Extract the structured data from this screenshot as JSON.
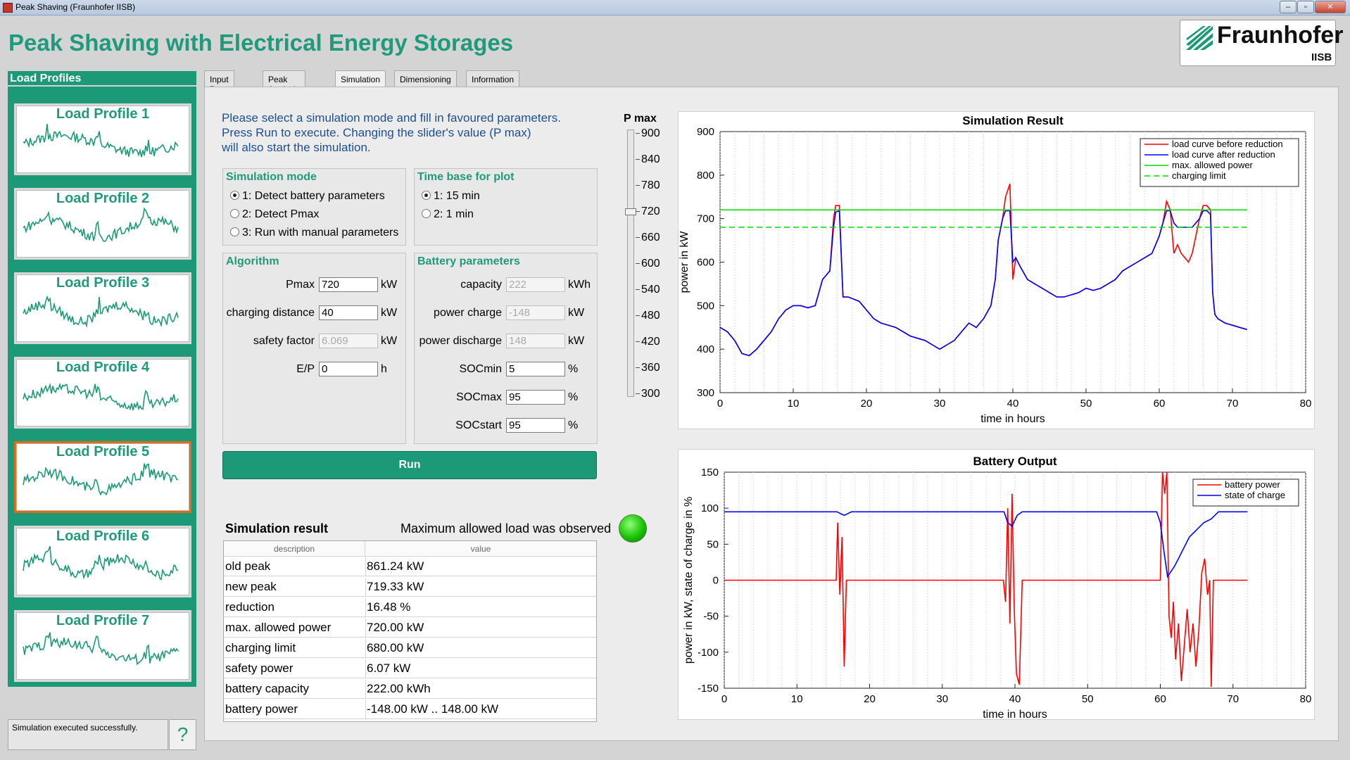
{
  "window": {
    "title": "Peak Shaving (Fraunhofer IISB)",
    "min": "–",
    "max": "▫",
    "close": "✕"
  },
  "app_title": "Peak Shaving with Electrical Energy Storages",
  "logo": {
    "word": "Fraunhofer",
    "sub": "IISB"
  },
  "load_profiles": {
    "header": "Load Profiles",
    "items": [
      {
        "label": "Load Profile 1"
      },
      {
        "label": "Load Profile 2"
      },
      {
        "label": "Load Profile 3"
      },
      {
        "label": "Load Profile 4"
      },
      {
        "label": "Load Profile 5"
      },
      {
        "label": "Load Profile 6"
      },
      {
        "label": "Load Profile 7"
      }
    ],
    "selected_index": 4
  },
  "status": {
    "message": "Simulation executed successfully.",
    "help": "?"
  },
  "tabs": [
    {
      "label": "Input Data"
    },
    {
      "label": "Peak Analysis"
    },
    {
      "label": "Simulation"
    },
    {
      "label": "Dimensioning"
    },
    {
      "label": "Information"
    }
  ],
  "active_tab": "Simulation",
  "instructions": [
    "Please select a simulation mode and fill in favoured parameters.",
    "Press Run to execute. Changing the slider's value (P max)",
    "will also start the simulation."
  ],
  "simulation_mode": {
    "title": "Simulation mode",
    "options": [
      "1: Detect battery parameters",
      "2: Detect Pmax",
      "3: Run with manual parameters"
    ],
    "selected": 0
  },
  "time_base": {
    "title": "Time base for plot",
    "options": [
      "1: 15 min",
      "2: 1 min"
    ],
    "selected": 0
  },
  "algorithm": {
    "title": "Algorithm",
    "fields": [
      {
        "label": "Pmax",
        "value": "720",
        "unit": "kW",
        "disabled": false
      },
      {
        "label": "charging distance",
        "value": "40",
        "unit": "kW",
        "disabled": false
      },
      {
        "label": "safety factor",
        "value": "6.069",
        "unit": "kW",
        "disabled": true
      },
      {
        "label": "E/P",
        "value": "0",
        "unit": "h",
        "disabled": false
      }
    ]
  },
  "battery": {
    "title": "Battery parameters",
    "fields": [
      {
        "label": "capacity",
        "value": "222",
        "unit": "kWh",
        "disabled": true
      },
      {
        "label": "power charge",
        "value": "-148",
        "unit": "kW",
        "disabled": true
      },
      {
        "label": "power discharge",
        "value": "148",
        "unit": "kW",
        "disabled": true
      },
      {
        "label": "SOCmin",
        "value": "5",
        "unit": "%",
        "disabled": false
      },
      {
        "label": "SOCmax",
        "value": "95",
        "unit": "%",
        "disabled": false
      },
      {
        "label": "SOCstart",
        "value": "95",
        "unit": "%",
        "disabled": false
      }
    ]
  },
  "run_label": "Run",
  "result": {
    "title": "Simulation result",
    "status_text": "Maximum allowed load was observed",
    "status_color": "#19c400",
    "columns": [
      "description",
      "value"
    ],
    "rows": [
      [
        "old peak",
        "861.24 kW"
      ],
      [
        "new peak",
        "719.33 kW"
      ],
      [
        "reduction",
        "16.48 %"
      ],
      [
        "max. allowed power",
        "720.00 kW"
      ],
      [
        "charging limit",
        "680.00 kW"
      ],
      [
        "safety power",
        "6.07 kW"
      ],
      [
        "battery capacity",
        "222.00 kWh"
      ],
      [
        "battery power",
        "-148.00 kW .. 148.00 kW"
      ]
    ]
  },
  "slider": {
    "label": "P max",
    "ticks": [
      "900",
      "840",
      "780",
      "720",
      "660",
      "600",
      "540",
      "480",
      "420",
      "360",
      "300"
    ],
    "min": 300,
    "max": 900,
    "value": 720
  },
  "chart_data": [
    {
      "type": "line",
      "title": "Simulation Result",
      "xlabel": "time in hours",
      "ylabel": "power in kW",
      "xlim": [
        0,
        80
      ],
      "ylim": [
        300,
        900
      ],
      "xticks": [
        "0",
        "10",
        "20",
        "30",
        "40",
        "50",
        "60",
        "70",
        "80"
      ],
      "yticks": [
        "900",
        "800",
        "700",
        "600",
        "500",
        "400",
        "300"
      ],
      "legend_position": "top-right",
      "grid": "vertical-dotted",
      "series": [
        {
          "name": "load curve before reduction",
          "color": "#ff0000",
          "style": "solid",
          "x": [
            0,
            1,
            2,
            3,
            4,
            5,
            6,
            7,
            8,
            9,
            10,
            11,
            12,
            13,
            14,
            15,
            15.5,
            15.8,
            16.3,
            16.8,
            17,
            17.5,
            19,
            20,
            21,
            22,
            24,
            26,
            28,
            29,
            30,
            31,
            32,
            33,
            34,
            35,
            36,
            37,
            37.6,
            38,
            38.6,
            39,
            39.6,
            40,
            40.4,
            41,
            42,
            43,
            44,
            45,
            46,
            47,
            48,
            49,
            50,
            51,
            52,
            53,
            54,
            55,
            56,
            57,
            58,
            59,
            59.5,
            60,
            60.5,
            61,
            61.5,
            62,
            62.5,
            63,
            63.5,
            64,
            64.5,
            65,
            65.5,
            66,
            66.5,
            67,
            67.3,
            67.6,
            68,
            69,
            70,
            71,
            72
          ],
          "y": [
            450,
            440,
            420,
            390,
            385,
            400,
            420,
            440,
            470,
            490,
            500,
            500,
            495,
            500,
            560,
            580,
            700,
            730,
            730,
            520,
            520,
            520,
            510,
            490,
            470,
            460,
            450,
            430,
            420,
            410,
            400,
            410,
            420,
            440,
            460,
            450,
            470,
            500,
            560,
            650,
            700,
            750,
            780,
            560,
            610,
            590,
            560,
            550,
            540,
            530,
            520,
            520,
            525,
            530,
            540,
            535,
            540,
            550,
            560,
            580,
            590,
            600,
            610,
            620,
            640,
            660,
            690,
            740,
            720,
            620,
            640,
            620,
            610,
            600,
            620,
            660,
            700,
            730,
            730,
            720,
            530,
            480,
            470,
            460,
            455,
            450,
            445
          ]
        },
        {
          "name": "load curve after reduction",
          "color": "#0000ff",
          "style": "solid",
          "x": [
            0,
            1,
            2,
            3,
            4,
            5,
            6,
            7,
            8,
            9,
            10,
            11,
            12,
            13,
            14,
            15,
            15.5,
            15.8,
            16.3,
            16.8,
            17,
            17.5,
            19,
            20,
            21,
            22,
            24,
            26,
            28,
            29,
            30,
            31,
            32,
            33,
            34,
            35,
            36,
            37,
            37.6,
            38,
            38.6,
            39,
            39.6,
            40,
            40.4,
            41,
            42,
            43,
            44,
            45,
            46,
            47,
            48,
            49,
            50,
            51,
            52,
            53,
            54,
            55,
            56,
            57,
            58,
            59,
            59.5,
            60,
            60.5,
            61,
            61.5,
            62,
            62.5,
            63,
            63.5,
            64,
            64.5,
            65,
            65.5,
            66,
            66.5,
            67,
            67.3,
            67.6,
            68,
            69,
            70,
            71,
            72
          ],
          "y": [
            450,
            440,
            420,
            390,
            385,
            400,
            420,
            440,
            470,
            490,
            500,
            500,
            495,
            500,
            560,
            580,
            680,
            715,
            718,
            520,
            520,
            520,
            510,
            490,
            470,
            460,
            450,
            430,
            420,
            410,
            400,
            410,
            420,
            440,
            460,
            450,
            470,
            500,
            560,
            650,
            700,
            718,
            718,
            600,
            610,
            590,
            560,
            550,
            540,
            530,
            520,
            520,
            525,
            530,
            540,
            535,
            540,
            550,
            560,
            580,
            590,
            600,
            610,
            620,
            640,
            660,
            690,
            718,
            718,
            690,
            680,
            680,
            680,
            680,
            680,
            690,
            700,
            718,
            718,
            710,
            530,
            480,
            470,
            460,
            455,
            450,
            445
          ]
        },
        {
          "name": "max. allowed power",
          "color": "#00dd00",
          "style": "solid",
          "x": [
            0,
            72
          ],
          "y": [
            720,
            720
          ]
        },
        {
          "name": "charging limit",
          "color": "#00dd00",
          "style": "dashed",
          "x": [
            0,
            72
          ],
          "y": [
            680,
            680
          ]
        }
      ]
    },
    {
      "type": "line",
      "title": "Battery Output",
      "xlabel": "time in hours",
      "ylabel": "power in kW, state of charge in %",
      "xlim": [
        0,
        80
      ],
      "ylim": [
        -150,
        150
      ],
      "xticks": [
        "0",
        "10",
        "20",
        "30",
        "40",
        "50",
        "60",
        "70",
        "80"
      ],
      "yticks": [
        "150",
        "100",
        "50",
        "0",
        "-50",
        "-100",
        "-150"
      ],
      "legend_position": "top-right",
      "grid": "vertical-dotted",
      "series": [
        {
          "name": "battery power",
          "color": "#ff0000",
          "style": "solid",
          "x": [
            0,
            15.4,
            15.6,
            15.9,
            16.2,
            16.5,
            16.8,
            17,
            38.4,
            38.7,
            39,
            39.3,
            39.6,
            39.9,
            40.2,
            40.6,
            41,
            60,
            60.3,
            60.6,
            60.9,
            61.2,
            61.5,
            61.8,
            62.1,
            62.5,
            62.9,
            63.3,
            63.7,
            64.1,
            64.5,
            64.9,
            65.3,
            65.7,
            66.1,
            66.5,
            66.8,
            67,
            67.3,
            67.6,
            68,
            72
          ],
          "y": [
            0,
            0,
            80,
            -20,
            60,
            -120,
            0,
            0,
            0,
            -30,
            100,
            -60,
            120,
            -40,
            -130,
            -145,
            0,
            0,
            150,
            120,
            150,
            -50,
            -80,
            -30,
            -110,
            -60,
            -140,
            -90,
            -40,
            -100,
            -60,
            -120,
            -70,
            10,
            30,
            -20,
            0,
            -148,
            0,
            0,
            0,
            0
          ]
        },
        {
          "name": "state of charge",
          "color": "#0000ff",
          "style": "solid",
          "x": [
            0,
            15.5,
            16.5,
            17.5,
            38.5,
            39,
            39.6,
            40.3,
            41,
            59.5,
            60,
            60.5,
            61,
            62,
            64,
            66,
            67,
            68,
            69,
            72
          ],
          "y": [
            95,
            95,
            90,
            95,
            95,
            80,
            75,
            90,
            95,
            95,
            80,
            40,
            5,
            20,
            60,
            80,
            85,
            95,
            95,
            95
          ]
        }
      ]
    }
  ]
}
